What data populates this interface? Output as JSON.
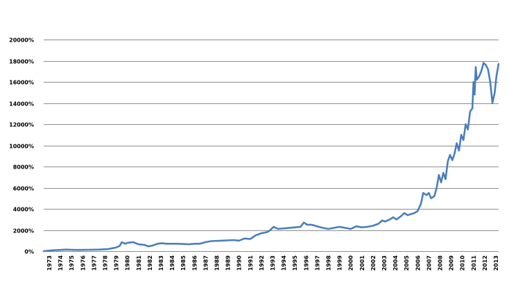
{
  "chart_data": {
    "type": "line",
    "title": "",
    "xlabel": "",
    "ylabel": "",
    "ylim": [
      0,
      20000
    ],
    "yticks": [
      0,
      2000,
      4000,
      6000,
      8000,
      10000,
      12000,
      14000,
      16000,
      18000,
      20000
    ],
    "ytick_labels": [
      "0%",
      "2000%",
      "4000%",
      "6000%",
      "8000%",
      "10000%",
      "12000%",
      "14000%",
      "16000%",
      "18000%",
      "20000%"
    ],
    "xlim": [
      1973,
      2013.75
    ],
    "xtick_labels": [
      "1973",
      "1974",
      "1975",
      "1976",
      "1977",
      "1978",
      "1979",
      "1980",
      "1981",
      "1982",
      "1983",
      "1984",
      "1985",
      "1986",
      "1987",
      "1988",
      "1989",
      "1990",
      "1991",
      "1992",
      "1993",
      "1994",
      "1995",
      "1996",
      "1997",
      "1998",
      "1999",
      "2000",
      "2001",
      "2002",
      "2003",
      "2004",
      "2005",
      "2006",
      "2007",
      "2008",
      "2009",
      "2010",
      "2011",
      "2012",
      "2013"
    ],
    "grid": true,
    "legend": "none",
    "color": "#4a7ebb",
    "series": [
      {
        "x": [
          1973.0,
          1973.5,
          1974.0,
          1974.5,
          1975.0,
          1975.5,
          1976.0,
          1977.0,
          1978.0,
          1978.8,
          1979.5,
          1979.8,
          1980.0,
          1980.3,
          1980.6,
          1981.0,
          1981.5,
          1982.0,
          1982.4,
          1982.8,
          1983.2,
          1983.6,
          1984.0,
          1985.0,
          1986.0,
          1986.5,
          1987.0,
          1987.5,
          1988.0,
          1989.0,
          1990.0,
          1990.5,
          1991.0,
          1991.5,
          1992.0,
          1992.5,
          1993.0,
          1993.3,
          1993.6,
          1994.0,
          1994.5,
          1995.0,
          1995.5,
          1996.0,
          1996.3,
          1996.6,
          1997.0,
          1997.5,
          1998.0,
          1998.5,
          1999.0,
          1999.5,
          2000.0,
          2000.5,
          2001.0,
          2001.5,
          2002.0,
          2002.5,
          2003.0,
          2003.3,
          2003.6,
          2004.0,
          2004.3,
          2004.6,
          2005.0,
          2005.3,
          2005.6,
          2005.9,
          2006.2,
          2006.5,
          2006.8,
          2007.0,
          2007.3,
          2007.5,
          2007.7,
          2008.0,
          2008.2,
          2008.4,
          2008.6,
          2008.8,
          2009.0,
          2009.2,
          2009.4,
          2009.6,
          2009.8,
          2010.0,
          2010.2,
          2010.4,
          2010.6,
          2010.8,
          2011.0,
          2011.2,
          2011.4,
          2011.5,
          2011.6,
          2011.7,
          2011.8,
          2012.0,
          2012.2,
          2012.4,
          2012.6,
          2012.8,
          2013.0,
          2013.2,
          2013.4,
          2013.55,
          2013.75
        ],
        "y": [
          0,
          50,
          100,
          120,
          150,
          130,
          120,
          130,
          150,
          200,
          350,
          500,
          850,
          700,
          800,
          850,
          650,
          600,
          450,
          550,
          700,
          750,
          700,
          700,
          650,
          700,
          700,
          850,
          950,
          1000,
          1050,
          1000,
          1200,
          1150,
          1500,
          1700,
          1800,
          2000,
          2300,
          2100,
          2150,
          2200,
          2250,
          2300,
          2700,
          2500,
          2500,
          2350,
          2200,
          2100,
          2200,
          2300,
          2200,
          2100,
          2350,
          2250,
          2300,
          2400,
          2600,
          2900,
          2800,
          3000,
          3200,
          3000,
          3300,
          3600,
          3400,
          3500,
          3600,
          3800,
          4500,
          5500,
          5300,
          5500,
          5000,
          5200,
          6000,
          7200,
          6500,
          7400,
          6800,
          8500,
          9100,
          8600,
          9200,
          10200,
          9500,
          11000,
          10500,
          12000,
          11500,
          13200,
          13500,
          16000,
          14800,
          17400,
          16200,
          16500,
          17000,
          17800,
          17600,
          17200,
          16000,
          14000,
          15000,
          16500,
          17700
        ]
      }
    ]
  }
}
